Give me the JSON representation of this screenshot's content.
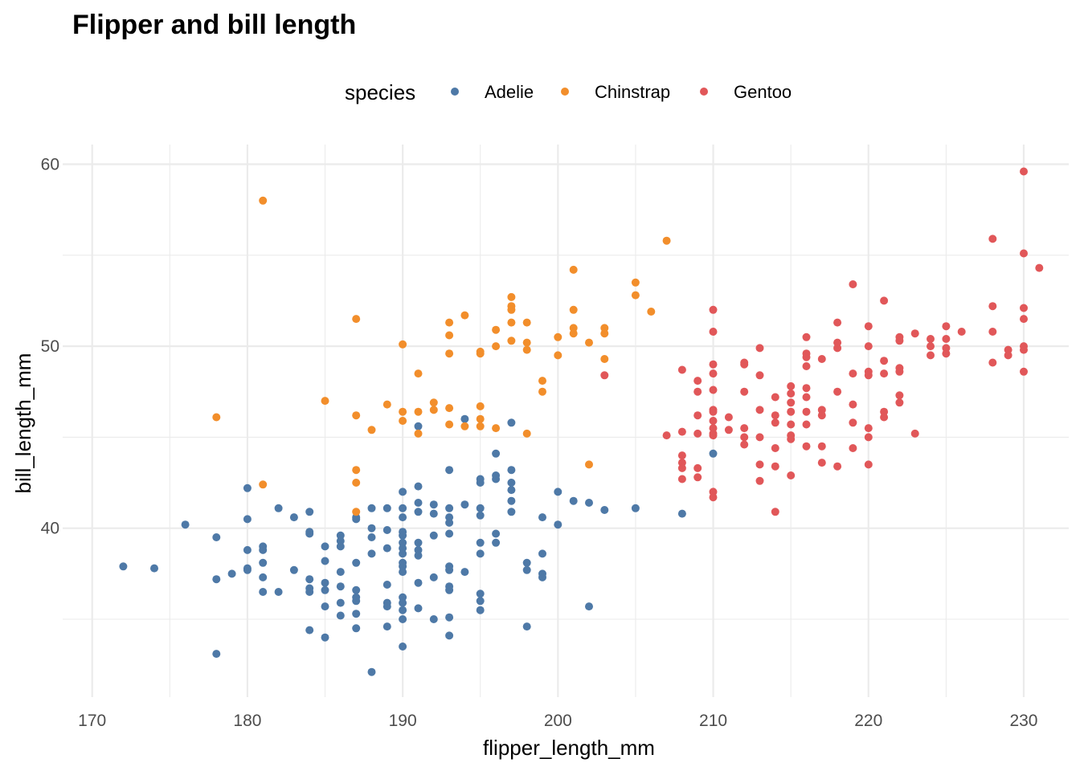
{
  "chart_data": {
    "type": "scatter",
    "title": "Flipper and bill length",
    "xlabel": "flipper_length_mm",
    "ylabel": "bill_length_mm",
    "xlim": [
      168.1,
      232.9
    ],
    "ylim": [
      30.72,
      61.08
    ],
    "xticks": [
      170,
      180,
      190,
      200,
      210,
      220,
      230
    ],
    "yticks": [
      40,
      50,
      60
    ],
    "grid": true,
    "legend": {
      "title": "species",
      "position": "top"
    },
    "series": [
      {
        "name": "Adelie",
        "color": "#4e79a7",
        "points": [
          [
            172,
            37.9
          ],
          [
            174,
            37.8
          ],
          [
            176,
            40.2
          ],
          [
            178,
            39.5
          ],
          [
            178,
            37.2
          ],
          [
            178,
            33.1
          ],
          [
            179,
            37.5
          ],
          [
            180,
            42.2
          ],
          [
            180,
            40.5
          ],
          [
            180,
            38.8
          ],
          [
            180,
            37.8
          ],
          [
            180,
            37.7
          ],
          [
            181,
            39.0
          ],
          [
            181,
            38.8
          ],
          [
            181,
            38.1
          ],
          [
            181,
            37.3
          ],
          [
            181,
            36.5
          ],
          [
            182,
            41.1
          ],
          [
            182,
            36.5
          ],
          [
            183,
            40.6
          ],
          [
            183,
            37.7
          ],
          [
            184,
            40.9
          ],
          [
            184,
            39.8
          ],
          [
            184,
            39.7
          ],
          [
            184,
            37.2
          ],
          [
            184,
            36.7
          ],
          [
            184,
            36.5
          ],
          [
            184,
            34.4
          ],
          [
            185,
            39.0
          ],
          [
            185,
            38.2
          ],
          [
            185,
            37.0
          ],
          [
            185,
            36.6
          ],
          [
            185,
            35.7
          ],
          [
            185,
            34.0
          ],
          [
            186,
            39.6
          ],
          [
            186,
            39.3
          ],
          [
            186,
            39.0
          ],
          [
            186,
            37.6
          ],
          [
            186,
            36.8
          ],
          [
            186,
            35.9
          ],
          [
            186,
            35.2
          ],
          [
            187,
            40.6
          ],
          [
            187,
            38.1
          ],
          [
            187,
            36.6
          ],
          [
            187,
            36.2
          ],
          [
            187,
            36.0
          ],
          [
            187,
            35.3
          ],
          [
            187,
            34.5
          ],
          [
            187,
            40.5
          ],
          [
            188,
            41.1
          ],
          [
            188,
            40.0
          ],
          [
            188,
            39.5
          ],
          [
            188,
            38.6
          ],
          [
            188,
            32.1
          ],
          [
            189,
            41.1
          ],
          [
            189,
            39.9
          ],
          [
            189,
            38.9
          ],
          [
            189,
            36.9
          ],
          [
            189,
            35.9
          ],
          [
            189,
            35.7
          ],
          [
            189,
            34.6
          ],
          [
            190,
            42.0
          ],
          [
            190,
            41.1
          ],
          [
            190,
            40.6
          ],
          [
            190,
            39.8
          ],
          [
            190,
            39.6
          ],
          [
            190,
            39.2
          ],
          [
            190,
            38.9
          ],
          [
            190,
            38.6
          ],
          [
            190,
            38.1
          ],
          [
            190,
            37.9
          ],
          [
            190,
            37.6
          ],
          [
            190,
            36.2
          ],
          [
            190,
            35.9
          ],
          [
            190,
            35.5
          ],
          [
            190,
            35.0
          ],
          [
            190,
            33.5
          ],
          [
            191,
            45.6
          ],
          [
            191,
            42.3
          ],
          [
            191,
            40.9
          ],
          [
            191,
            39.2
          ],
          [
            191,
            38.8
          ],
          [
            191,
            38.5
          ],
          [
            191,
            37.0
          ],
          [
            191,
            35.6
          ],
          [
            191,
            41.4
          ],
          [
            192,
            41.3
          ],
          [
            192,
            40.8
          ],
          [
            192,
            39.6
          ],
          [
            192,
            37.3
          ],
          [
            192,
            35.0
          ],
          [
            193,
            43.2
          ],
          [
            193,
            41.1
          ],
          [
            193,
            40.6
          ],
          [
            193,
            40.3
          ],
          [
            193,
            39.7
          ],
          [
            193,
            37.9
          ],
          [
            193,
            37.7
          ],
          [
            193,
            36.8
          ],
          [
            193,
            36.6
          ],
          [
            193,
            35.1
          ],
          [
            193,
            34.1
          ],
          [
            194,
            46.0
          ],
          [
            194,
            41.3
          ],
          [
            194,
            37.6
          ],
          [
            195,
            42.7
          ],
          [
            195,
            42.5
          ],
          [
            195,
            41.1
          ],
          [
            195,
            40.7
          ],
          [
            195,
            39.2
          ],
          [
            195,
            38.6
          ],
          [
            195,
            36.4
          ],
          [
            195,
            36.0
          ],
          [
            195,
            35.5
          ],
          [
            196,
            44.1
          ],
          [
            196,
            42.9
          ],
          [
            196,
            42.7
          ],
          [
            196,
            39.7
          ],
          [
            196,
            39.2
          ],
          [
            197,
            45.8
          ],
          [
            197,
            43.2
          ],
          [
            197,
            42.5
          ],
          [
            197,
            42.1
          ],
          [
            197,
            41.5
          ],
          [
            197,
            40.9
          ],
          [
            198,
            38.1
          ],
          [
            198,
            37.7
          ],
          [
            198,
            34.6
          ],
          [
            199,
            40.6
          ],
          [
            199,
            38.6
          ],
          [
            199,
            37.5
          ],
          [
            199,
            37.3
          ],
          [
            200,
            42.0
          ],
          [
            200,
            40.2
          ],
          [
            201,
            41.5
          ],
          [
            202,
            41.4
          ],
          [
            202,
            35.7
          ],
          [
            203,
            41.0
          ],
          [
            205,
            41.1
          ],
          [
            208,
            40.8
          ],
          [
            210,
            44.1
          ]
        ]
      },
      {
        "name": "Chinstrap",
        "color": "#f28e2b",
        "points": [
          [
            178,
            46.1
          ],
          [
            181,
            58.0
          ],
          [
            181,
            42.4
          ],
          [
            185,
            47.0
          ],
          [
            187,
            51.5
          ],
          [
            187,
            46.2
          ],
          [
            187,
            43.2
          ],
          [
            187,
            42.5
          ],
          [
            187,
            40.9
          ],
          [
            188,
            45.4
          ],
          [
            189,
            46.8
          ],
          [
            190,
            50.1
          ],
          [
            190,
            46.4
          ],
          [
            190,
            45.9
          ],
          [
            191,
            48.5
          ],
          [
            191,
            46.4
          ],
          [
            191,
            45.2
          ],
          [
            192,
            46.9
          ],
          [
            192,
            46.5
          ],
          [
            193,
            51.3
          ],
          [
            193,
            50.6
          ],
          [
            193,
            49.6
          ],
          [
            193,
            46.6
          ],
          [
            193,
            45.7
          ],
          [
            194,
            51.7
          ],
          [
            194,
            45.6
          ],
          [
            195,
            49.7
          ],
          [
            195,
            49.6
          ],
          [
            195,
            46.7
          ],
          [
            195,
            46.0
          ],
          [
            195,
            45.6
          ],
          [
            196,
            50.9
          ],
          [
            196,
            50.0
          ],
          [
            196,
            45.5
          ],
          [
            197,
            52.7
          ],
          [
            197,
            52.2
          ],
          [
            197,
            52.0
          ],
          [
            197,
            51.3
          ],
          [
            197,
            50.3
          ],
          [
            198,
            51.3
          ],
          [
            198,
            50.2
          ],
          [
            198,
            49.8
          ],
          [
            198,
            45.2
          ],
          [
            199,
            48.1
          ],
          [
            199,
            47.5
          ],
          [
            200,
            50.5
          ],
          [
            200,
            49.5
          ],
          [
            201,
            54.2
          ],
          [
            201,
            52.0
          ],
          [
            201,
            51.0
          ],
          [
            201,
            50.7
          ],
          [
            202,
            50.2
          ],
          [
            202,
            43.5
          ],
          [
            203,
            51.0
          ],
          [
            203,
            50.7
          ],
          [
            203,
            49.3
          ],
          [
            205,
            53.5
          ],
          [
            205,
            52.8
          ],
          [
            206,
            51.9
          ],
          [
            207,
            55.8
          ]
        ]
      },
      {
        "name": "Gentoo",
        "color": "#e15759",
        "points": [
          [
            203,
            48.4
          ],
          [
            207,
            45.1
          ],
          [
            208,
            48.7
          ],
          [
            208,
            45.3
          ],
          [
            208,
            44.0
          ],
          [
            208,
            43.6
          ],
          [
            208,
            43.3
          ],
          [
            208,
            42.7
          ],
          [
            209,
            48.1
          ],
          [
            209,
            47.5
          ],
          [
            209,
            46.2
          ],
          [
            209,
            45.2
          ],
          [
            209,
            43.3
          ],
          [
            209,
            42.8
          ],
          [
            210,
            52.0
          ],
          [
            210,
            50.8
          ],
          [
            210,
            49.0
          ],
          [
            210,
            48.5
          ],
          [
            210,
            47.6
          ],
          [
            210,
            46.5
          ],
          [
            210,
            46.4
          ],
          [
            210,
            45.9
          ],
          [
            210,
            45.5
          ],
          [
            210,
            45.2
          ],
          [
            210,
            45.1
          ],
          [
            210,
            42.0
          ],
          [
            210,
            41.7
          ],
          [
            211,
            46.1
          ],
          [
            211,
            45.4
          ],
          [
            212,
            49.1
          ],
          [
            212,
            49.0
          ],
          [
            212,
            47.5
          ],
          [
            212,
            45.5
          ],
          [
            212,
            45.0
          ],
          [
            212,
            44.6
          ],
          [
            213,
            49.9
          ],
          [
            213,
            48.4
          ],
          [
            213,
            46.5
          ],
          [
            213,
            45.0
          ],
          [
            213,
            43.5
          ],
          [
            213,
            42.6
          ],
          [
            214,
            47.2
          ],
          [
            214,
            46.2
          ],
          [
            214,
            45.8
          ],
          [
            214,
            44.4
          ],
          [
            214,
            43.4
          ],
          [
            214,
            40.9
          ],
          [
            215,
            47.8
          ],
          [
            215,
            47.4
          ],
          [
            215,
            46.9
          ],
          [
            215,
            46.4
          ],
          [
            215,
            45.7
          ],
          [
            215,
            45.1
          ],
          [
            215,
            44.9
          ],
          [
            215,
            42.9
          ],
          [
            216,
            50.5
          ],
          [
            216,
            49.6
          ],
          [
            216,
            49.4
          ],
          [
            216,
            48.9
          ],
          [
            216,
            47.7
          ],
          [
            216,
            47.2
          ],
          [
            216,
            46.4
          ],
          [
            216,
            45.7
          ],
          [
            216,
            44.5
          ],
          [
            217,
            49.3
          ],
          [
            217,
            46.5
          ],
          [
            217,
            46.2
          ],
          [
            217,
            44.5
          ],
          [
            217,
            43.6
          ],
          [
            218,
            51.3
          ],
          [
            218,
            50.2
          ],
          [
            218,
            49.9
          ],
          [
            218,
            47.5
          ],
          [
            218,
            43.4
          ],
          [
            219,
            53.4
          ],
          [
            219,
            48.5
          ],
          [
            219,
            46.8
          ],
          [
            219,
            45.8
          ],
          [
            219,
            44.4
          ],
          [
            220,
            51.1
          ],
          [
            220,
            50.0
          ],
          [
            220,
            48.6
          ],
          [
            220,
            48.4
          ],
          [
            220,
            45.5
          ],
          [
            220,
            45.0
          ],
          [
            220,
            43.5
          ],
          [
            221,
            52.5
          ],
          [
            221,
            49.2
          ],
          [
            221,
            48.5
          ],
          [
            221,
            46.4
          ],
          [
            221,
            46.1
          ],
          [
            222,
            50.5
          ],
          [
            222,
            50.3
          ],
          [
            222,
            48.8
          ],
          [
            222,
            48.6
          ],
          [
            222,
            47.3
          ],
          [
            222,
            46.9
          ],
          [
            223,
            50.7
          ],
          [
            223,
            45.2
          ],
          [
            224,
            50.4
          ],
          [
            224,
            50.0
          ],
          [
            224,
            49.5
          ],
          [
            225,
            51.1
          ],
          [
            225,
            50.4
          ],
          [
            225,
            49.9
          ],
          [
            225,
            49.6
          ],
          [
            226,
            50.8
          ],
          [
            228,
            55.9
          ],
          [
            228,
            52.2
          ],
          [
            228,
            50.8
          ],
          [
            228,
            49.1
          ],
          [
            229,
            49.8
          ],
          [
            229,
            49.5
          ],
          [
            230,
            59.6
          ],
          [
            230,
            55.1
          ],
          [
            230,
            52.1
          ],
          [
            230,
            51.5
          ],
          [
            230,
            50.0
          ],
          [
            230,
            49.8
          ],
          [
            230,
            48.6
          ],
          [
            231,
            54.3
          ]
        ]
      }
    ]
  }
}
